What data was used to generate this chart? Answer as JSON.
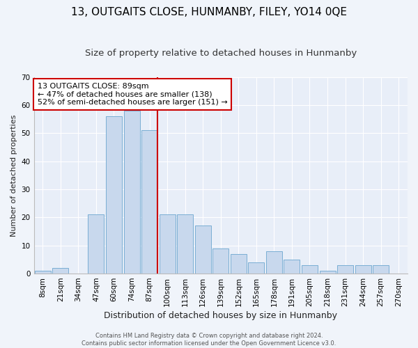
{
  "title": "13, OUTGAITS CLOSE, HUNMANBY, FILEY, YO14 0QE",
  "subtitle": "Size of property relative to detached houses in Hunmanby",
  "xlabel": "Distribution of detached houses by size in Hunmanby",
  "ylabel": "Number of detached properties",
  "categories": [
    "8sqm",
    "21sqm",
    "34sqm",
    "47sqm",
    "60sqm",
    "74sqm",
    "87sqm",
    "100sqm",
    "113sqm",
    "126sqm",
    "139sqm",
    "152sqm",
    "165sqm",
    "178sqm",
    "191sqm",
    "205sqm",
    "218sqm",
    "231sqm",
    "244sqm",
    "257sqm",
    "270sqm"
  ],
  "values": [
    1,
    2,
    0,
    21,
    56,
    58,
    51,
    21,
    21,
    17,
    9,
    7,
    4,
    8,
    5,
    3,
    1,
    3,
    3,
    3,
    0
  ],
  "bar_color": "#c8d8ed",
  "bar_edge_color": "#7aaed4",
  "vline_color": "#cc0000",
  "vline_x_index": 6,
  "annotation_text_line1": "13 OUTGAITS CLOSE: 89sqm",
  "annotation_text_line2": "← 47% of detached houses are smaller (138)",
  "annotation_text_line3": "52% of semi-detached houses are larger (151) →",
  "annotation_box_edge_color": "#cc0000",
  "ylim": [
    0,
    70
  ],
  "yticks": [
    0,
    10,
    20,
    30,
    40,
    50,
    60,
    70
  ],
  "fig_background": "#f0f4fa",
  "plot_background": "#e8eef8",
  "grid_color": "#ffffff",
  "footer_line1": "Contains HM Land Registry data © Crown copyright and database right 2024.",
  "footer_line2": "Contains public sector information licensed under the Open Government Licence v3.0.",
  "title_fontsize": 11,
  "subtitle_fontsize": 9.5,
  "xlabel_fontsize": 9,
  "ylabel_fontsize": 8,
  "tick_fontsize": 7.5,
  "annotation_fontsize": 8,
  "footer_fontsize": 6
}
